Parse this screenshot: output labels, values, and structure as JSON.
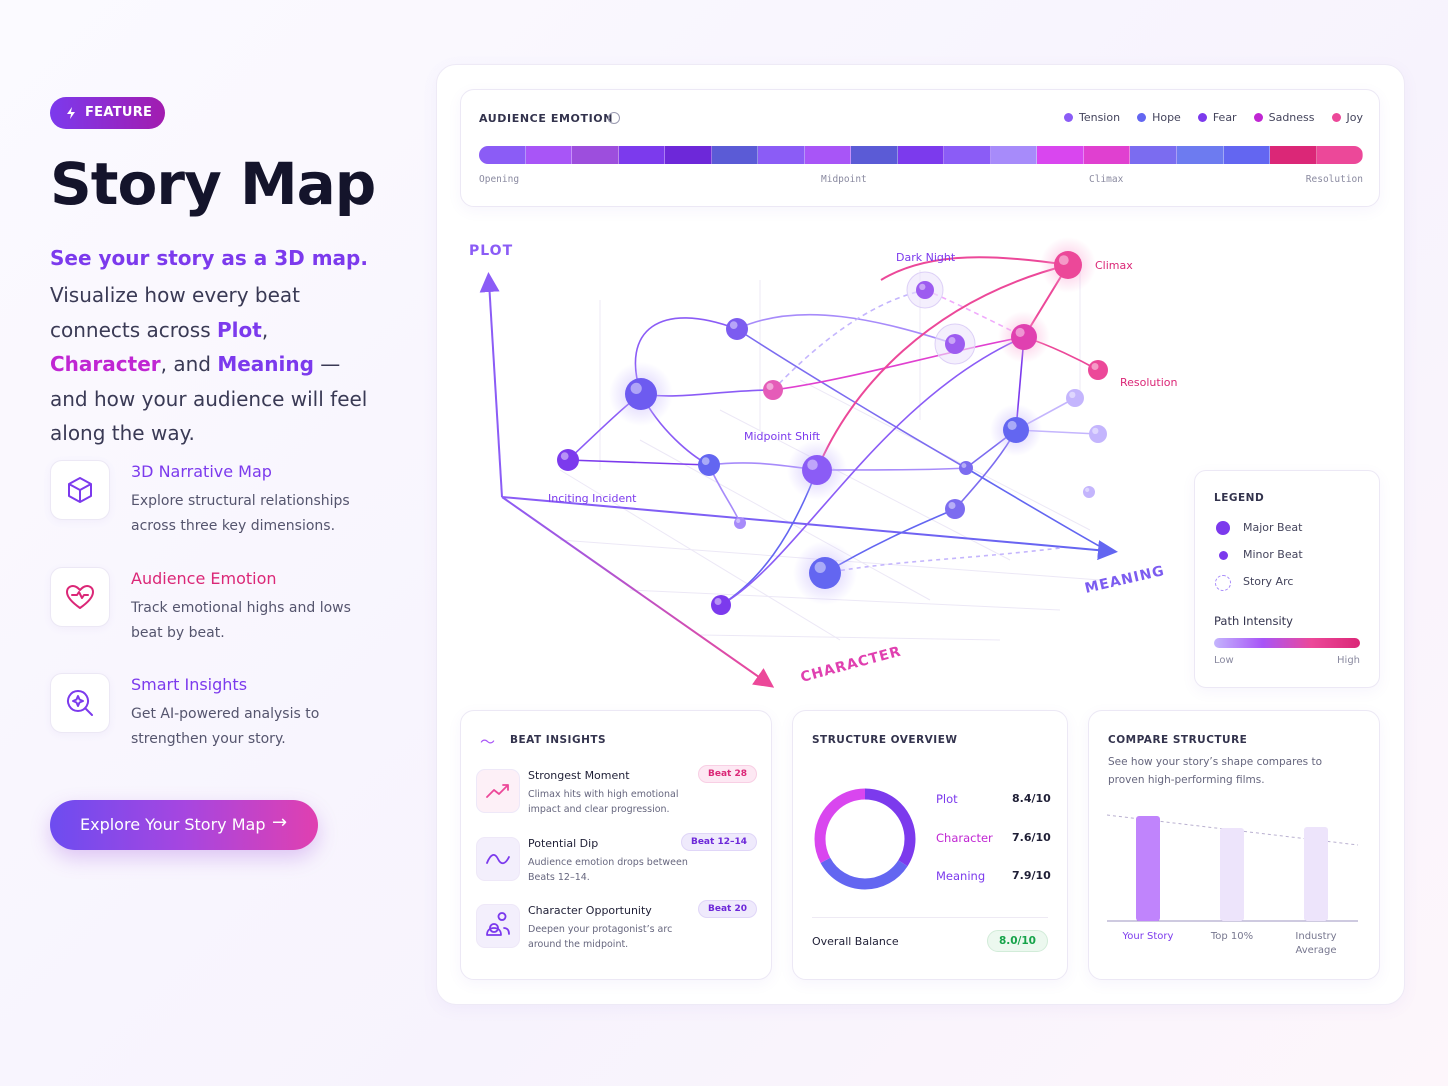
{
  "badge": "FEATURE",
  "title": "Story Map",
  "lead": "See your story as a 3D map.",
  "description": [
    {
      "text": "Visualize how every beat connects across ",
      "color": "#3a3a55"
    },
    {
      "text": "Plot",
      "color": "#7c3aed"
    },
    {
      "text": ", ",
      "color": "#3a3a55"
    },
    {
      "text": "Character",
      "color": "#c026d3"
    },
    {
      "text": ", and ",
      "color": "#3a3a55"
    },
    {
      "text": "Meaning",
      "color": "#7c3aed"
    },
    {
      "text": " — and how your audience will feel along the way.",
      "color": "#3a3a55"
    }
  ],
  "features": [
    {
      "title": "3D Narrative Map",
      "text": "Explore structural relationships across three key dimensions.",
      "color": "#7c3aed"
    },
    {
      "title": "Audience Emotion",
      "text": "Track emotional highs and lows beat by beat.",
      "color": "#db2777"
    },
    {
      "title": "Smart Insights",
      "text": "Get AI-powered analysis to strengthen your story.",
      "color": "#7c3aed"
    }
  ],
  "cta": "Explore Your Story Map",
  "emotion": {
    "title": "AUDIENCE EMOTION",
    "legend": [
      {
        "name": "Tension",
        "color": "#8b5cf6"
      },
      {
        "name": "Hope",
        "color": "#6366f1"
      },
      {
        "name": "Fear",
        "color": "#7c3aed"
      },
      {
        "name": "Sadness",
        "color": "#c026d3"
      },
      {
        "name": "Joy",
        "color": "#ec4899"
      }
    ],
    "segments": [
      "#8b5cf6",
      "#a855f7",
      "#9d4edd",
      "#7c3aed",
      "#6d28d9",
      "#5b5bd6",
      "#8b5cf6",
      "#a855f7",
      "#5b5bd6",
      "#7c3aed",
      "#8b5cf6",
      "#a78bfa",
      "#d946ef",
      "#e040d0",
      "#7b6cf0",
      "#6d7bf0",
      "#6366f1",
      "#db2777",
      "#ec4899"
    ],
    "labels": [
      "Opening",
      "Midpoint",
      "Climax",
      "Resolution"
    ]
  },
  "map": {
    "axes": {
      "plot": "PLOT",
      "character": "CHARACTER",
      "meaning": "MEANING"
    },
    "nodes": [
      "Dark Night",
      "Climax",
      "Resolution",
      "Midpoint Shift",
      "Inciting Incident"
    ]
  },
  "legend": {
    "title": "LEGEND",
    "items": [
      "Major Beat",
      "Minor Beat",
      "Story Arc"
    ],
    "intensity": "Path Intensity",
    "low": "Low",
    "high": "High"
  },
  "insights": {
    "title": "BEAT INSIGHTS",
    "items": [
      {
        "title": "Strongest Moment",
        "text": "Climax hits with high emotional impact and clear progression.",
        "tag": "Beat 28"
      },
      {
        "title": "Potential Dip",
        "text": "Audience emotion drops between Beats 12–14.",
        "tag": "Beat 12–14"
      },
      {
        "title": "Character Opportunity",
        "text": "Deepen your protagonist’s arc around the midpoint.",
        "tag": "Beat 20"
      }
    ]
  },
  "structure": {
    "title": "STRUCTURE OVERVIEW",
    "metrics": [
      {
        "name": "Plot",
        "score": "8.4/10"
      },
      {
        "name": "Character",
        "score": "7.6/10"
      },
      {
        "name": "Meaning",
        "score": "7.9/10"
      }
    ],
    "overall": "Overall Balance",
    "overall_score": "8.0/10"
  },
  "compare": {
    "title": "COMPARE STRUCTURE",
    "subtitle": "See how your story’s shape compares to proven high-performing films.",
    "chart_data": {
      "type": "bar",
      "categories": [
        "Your Story",
        "Top 10%",
        "Industry Average"
      ],
      "values": [
        105,
        93,
        94
      ],
      "colors": [
        "#c084fc",
        "#ede4fb",
        "#ede4fb"
      ],
      "ylim": [
        0,
        110
      ]
    }
  }
}
